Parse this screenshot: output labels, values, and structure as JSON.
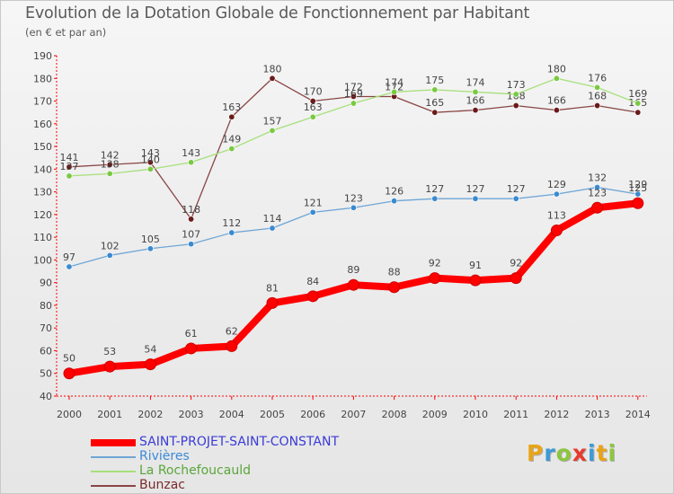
{
  "title": "Evolution de la Dotation Globale de Fonctionnement par Habitant",
  "subtitle": "(en € et par an)",
  "logo": {
    "text": "Proxiti",
    "letters": [
      {
        "ch": "P",
        "color": "#e8a417"
      },
      {
        "ch": "r",
        "color": "#3a9ad6"
      },
      {
        "ch": "o",
        "color": "#8cc63f"
      },
      {
        "ch": "x",
        "color": "#e83a2e"
      },
      {
        "ch": "i",
        "color": "#3a9ad6"
      },
      {
        "ch": "t",
        "color": "#e8a417"
      },
      {
        "ch": "i",
        "color": "#8cc63f"
      }
    ]
  },
  "chart_data": {
    "type": "line",
    "title": "Evolution de la Dotation Globale de Fonctionnement par Habitant",
    "subtitle": "(en € et par an)",
    "x": [
      "2000",
      "2001",
      "2002",
      "2003",
      "2004",
      "2005",
      "2006",
      "2007",
      "2008",
      "2009",
      "2010",
      "2011",
      "2012",
      "2013",
      "2014"
    ],
    "yticks": [
      "40",
      "50",
      "60",
      "70",
      "80",
      "90",
      "100",
      "110",
      "120",
      "130",
      "140",
      "150",
      "160",
      "170",
      "180",
      "190"
    ],
    "ylim": [
      40,
      190
    ],
    "grid": false,
    "legend_position": "bottom-left",
    "series": [
      {
        "name": "SAINT-PROJET-SAINT-CONSTANT",
        "color": "#ff0000",
        "marker_color": "#ff0000",
        "legend_color": "#3b3bd8",
        "emphasis": "thick",
        "values": [
          50,
          53,
          54,
          61,
          62,
          81,
          84,
          89,
          88,
          92,
          91,
          92,
          113,
          123,
          125
        ]
      },
      {
        "name": "Rivières",
        "color": "#6ea6d6",
        "marker_color": "#3a8ad0",
        "legend_color": "#3b8ad8",
        "emphasis": "thin",
        "values": [
          97,
          102,
          105,
          107,
          112,
          114,
          121,
          123,
          126,
          127,
          127,
          127,
          129,
          132,
          129
        ]
      },
      {
        "name": "La Rochefoucauld",
        "color": "#a6e07a",
        "marker_color": "#7ac943",
        "legend_color": "#5aa63a",
        "emphasis": "thin",
        "values": [
          137,
          138,
          140,
          143,
          149,
          157,
          163,
          169,
          174,
          175,
          174,
          173,
          180,
          176,
          169
        ]
      },
      {
        "name": "Bunzac",
        "color": "#8a4545",
        "marker_color": "#6b1a1a",
        "legend_color": "#7a2a2a",
        "emphasis": "thin",
        "values": [
          141,
          142,
          143,
          118,
          163,
          180,
          170,
          172,
          172,
          165,
          166,
          168,
          166,
          168,
          165
        ]
      }
    ]
  }
}
